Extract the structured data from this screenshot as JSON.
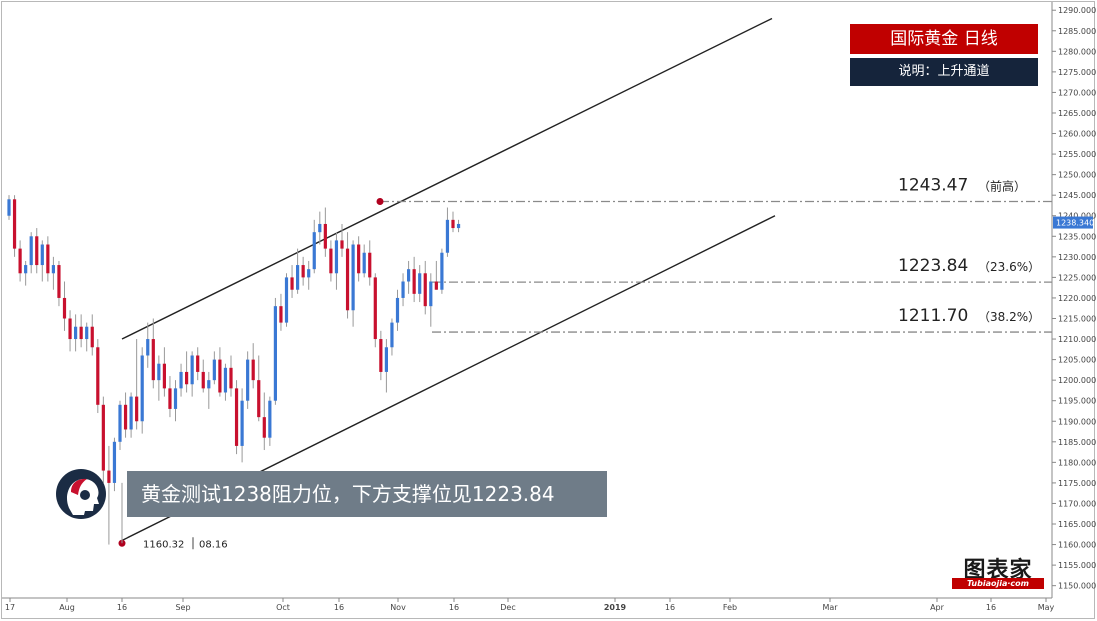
{
  "title": "国际黄金 日线",
  "subtitle": "说明：上升通道",
  "banner": "黄金测试1238阻力位，下方支撑位见1223.84",
  "brand": {
    "main": "图表家",
    "sub": "Tubiaojia·com"
  },
  "colors": {
    "up": "#3a78d4",
    "down": "#c8102e",
    "title_bg": "#c00000",
    "subtitle_bg": "#15243b",
    "banner_bg": "#6f7c88",
    "price_tag": "#3a78d4"
  },
  "chart_data": {
    "type": "candlestick",
    "y_axis": {
      "min": 1147,
      "max": 1292,
      "ticks": [
        1150,
        1155,
        1160,
        1165,
        1170,
        1175,
        1180,
        1185,
        1190,
        1195,
        1200,
        1205,
        1210,
        1215,
        1220,
        1225,
        1230,
        1235,
        1240,
        1245,
        1250,
        1255,
        1260,
        1265,
        1270,
        1275,
        1280,
        1285,
        1290
      ],
      "tick_format": "0.000"
    },
    "x_axis": {
      "ticks": [
        "17",
        "Aug",
        "16",
        "Sep",
        "Oct",
        "16",
        "Nov",
        "16",
        "Dec",
        "2019",
        "16",
        "Feb",
        "Mar",
        "Apr",
        "16",
        "May"
      ]
    },
    "current_price": "1238.340",
    "candles": [
      [
        1240,
        1245,
        1239,
        1244
      ],
      [
        1244,
        1245,
        1230,
        1232
      ],
      [
        1232,
        1234,
        1224,
        1226
      ],
      [
        1226,
        1229,
        1223,
        1228
      ],
      [
        1228,
        1236,
        1226,
        1235
      ],
      [
        1235,
        1237,
        1226,
        1228
      ],
      [
        1228,
        1234,
        1224,
        1233
      ],
      [
        1233,
        1235,
        1224,
        1226
      ],
      [
        1226,
        1230,
        1222,
        1228
      ],
      [
        1228,
        1229,
        1218,
        1220
      ],
      [
        1220,
        1224,
        1212,
        1215
      ],
      [
        1215,
        1217,
        1207,
        1210
      ],
      [
        1210,
        1216,
        1207,
        1213
      ],
      [
        1213,
        1216,
        1208,
        1210
      ],
      [
        1210,
        1214,
        1207,
        1213
      ],
      [
        1213,
        1216,
        1206,
        1208
      ],
      [
        1208,
        1210,
        1192,
        1194
      ],
      [
        1194,
        1196,
        1175,
        1178
      ],
      [
        1178,
        1184,
        1160,
        1175
      ],
      [
        1175,
        1186,
        1173,
        1185
      ],
      [
        1185,
        1195,
        1183,
        1194
      ],
      [
        1194,
        1197,
        1186,
        1188
      ],
      [
        1188,
        1197,
        1186,
        1196
      ],
      [
        1196,
        1210,
        1188,
        1190
      ],
      [
        1190,
        1208,
        1187,
        1206
      ],
      [
        1206,
        1214,
        1203,
        1210
      ],
      [
        1210,
        1215,
        1198,
        1200
      ],
      [
        1200,
        1206,
        1195,
        1204
      ],
      [
        1204,
        1208,
        1196,
        1198
      ],
      [
        1198,
        1201,
        1191,
        1193
      ],
      [
        1193,
        1200,
        1190,
        1198
      ],
      [
        1198,
        1204,
        1196,
        1202
      ],
      [
        1202,
        1207,
        1197,
        1199
      ],
      [
        1199,
        1207,
        1196,
        1206
      ],
      [
        1206,
        1208,
        1200,
        1202
      ],
      [
        1202,
        1205,
        1197,
        1198
      ],
      [
        1198,
        1202,
        1193,
        1200
      ],
      [
        1200,
        1207,
        1199,
        1205
      ],
      [
        1205,
        1208,
        1196,
        1197
      ],
      [
        1197,
        1204,
        1195,
        1203
      ],
      [
        1203,
        1206,
        1196,
        1198
      ],
      [
        1198,
        1200,
        1182,
        1184
      ],
      [
        1184,
        1198,
        1180,
        1195
      ],
      [
        1195,
        1207,
        1193,
        1205
      ],
      [
        1205,
        1209,
        1198,
        1200
      ],
      [
        1200,
        1206,
        1190,
        1191
      ],
      [
        1191,
        1197,
        1183,
        1186
      ],
      [
        1186,
        1196,
        1184,
        1195
      ],
      [
        1195,
        1220,
        1194,
        1218
      ],
      [
        1218,
        1221,
        1212,
        1214
      ],
      [
        1214,
        1226,
        1213,
        1225
      ],
      [
        1225,
        1228,
        1220,
        1222
      ],
      [
        1222,
        1232,
        1221,
        1228
      ],
      [
        1228,
        1230,
        1223,
        1225
      ],
      [
        1225,
        1229,
        1222,
        1227
      ],
      [
        1227,
        1239,
        1226,
        1236
      ],
      [
        1236,
        1241,
        1233,
        1238
      ],
      [
        1238,
        1242,
        1230,
        1232
      ],
      [
        1232,
        1234,
        1224,
        1226
      ],
      [
        1226,
        1236,
        1222,
        1234
      ],
      [
        1234,
        1238,
        1230,
        1232
      ],
      [
        1232,
        1236,
        1215,
        1217
      ],
      [
        1217,
        1234,
        1213,
        1233
      ],
      [
        1233,
        1235,
        1224,
        1226
      ],
      [
        1226,
        1233,
        1225,
        1231
      ],
      [
        1231,
        1234,
        1223,
        1225
      ],
      [
        1225,
        1226,
        1208,
        1210
      ],
      [
        1210,
        1212,
        1200,
        1202
      ],
      [
        1202,
        1210,
        1197,
        1208
      ],
      [
        1208,
        1215,
        1206,
        1214
      ],
      [
        1214,
        1222,
        1212,
        1220
      ],
      [
        1220,
        1226,
        1218,
        1224
      ],
      [
        1224,
        1229,
        1221,
        1227
      ],
      [
        1227,
        1230,
        1219,
        1221
      ],
      [
        1221,
        1228,
        1219,
        1226
      ],
      [
        1226,
        1229,
        1216,
        1218
      ],
      [
        1218,
        1226,
        1213,
        1224
      ],
      [
        1224,
        1229,
        1222,
        1222
      ],
      [
        1222,
        1232,
        1221,
        1231
      ],
      [
        1231,
        1242,
        1230,
        1239
      ],
      [
        1239,
        1241,
        1236,
        1237
      ],
      [
        1237,
        1239,
        1236,
        1238
      ]
    ],
    "channel": {
      "upper": [
        [
          "2018-08-16",
          1210
        ],
        [
          "2019-02-22",
          1288
        ]
      ],
      "lower": [
        [
          "2018-08-16",
          1161
        ],
        [
          "2019-02-22",
          1240
        ]
      ]
    },
    "levels": [
      {
        "price": 1243.47,
        "label": "1243.47",
        "note": "（前高）"
      },
      {
        "price": 1223.84,
        "label": "1223.84",
        "note": "（23.6%）"
      },
      {
        "price": 1211.7,
        "label": "1211.70",
        "note": "（38.2%）"
      }
    ],
    "low_point": {
      "price": 1160.32,
      "label": "1160.32",
      "date": "08.16"
    },
    "high_point": {
      "price": 1243.47
    }
  }
}
